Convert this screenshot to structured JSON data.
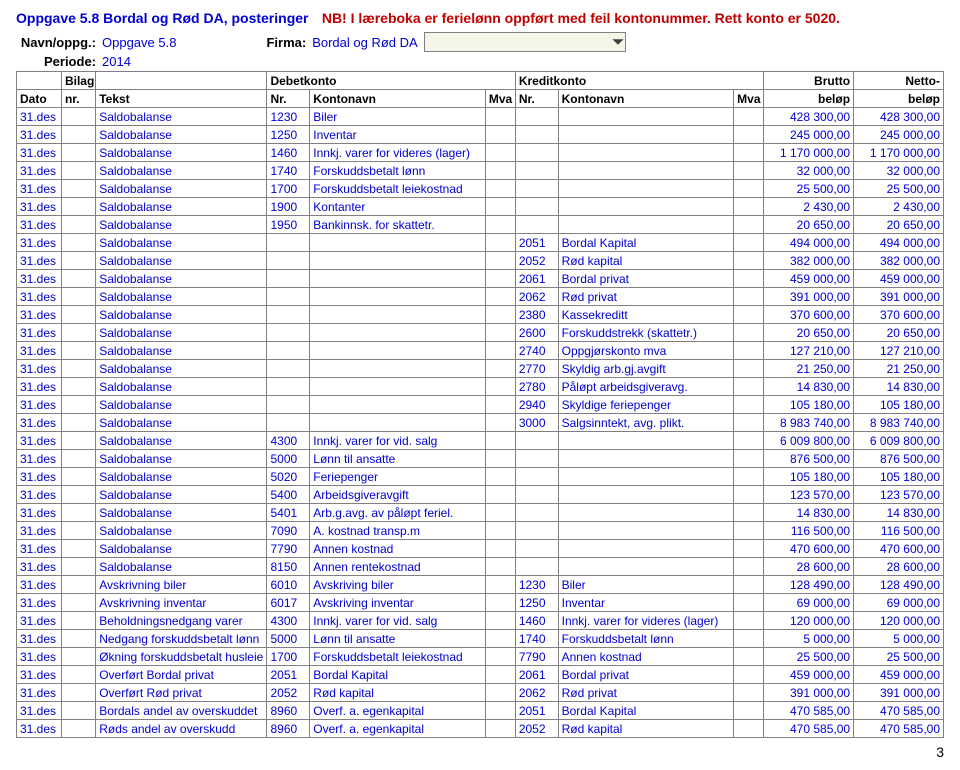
{
  "title": {
    "main": "Oppgave 5.8 Bordal og Rød DA, posteringer",
    "note": "NB! I læreboka er ferielønn oppført med feil kontonummer. Rett konto er 5020."
  },
  "info": {
    "navn_label": "Navn/oppg.:",
    "navn_value": "Oppgave 5.8",
    "firma_label": "Firma:",
    "firma_value": "Bordal og Rød DA",
    "periode_label": "Periode:",
    "periode_value": "2014"
  },
  "headers": {
    "r1": {
      "bilag": "Bilag",
      "debet": "Debetkonto",
      "kredit": "Kreditkonto",
      "brutto": "Brutto",
      "netto": "Netto-"
    },
    "r2": {
      "dato": "Dato",
      "nr1": "nr.",
      "tekst": "Tekst",
      "nr2": "Nr.",
      "konto1": "Kontonavn",
      "mva1": "Mva",
      "nr3": "Nr.",
      "konto2": "Kontonavn",
      "mva2": "Mva",
      "belop1": "beløp",
      "belop2": "beløp"
    }
  },
  "rows": [
    {
      "dato": "31.des",
      "tekst": "Saldobalanse",
      "dnr": "1230",
      "dkonto": "Biler",
      "brutto": "428 300,00",
      "netto": "428 300,00"
    },
    {
      "dato": "31.des",
      "tekst": "Saldobalanse",
      "dnr": "1250",
      "dkonto": "Inventar",
      "brutto": "245 000,00",
      "netto": "245 000,00"
    },
    {
      "dato": "31.des",
      "tekst": "Saldobalanse",
      "dnr": "1460",
      "dkonto": "Innkj. varer for videres (lager)",
      "brutto": "1 170 000,00",
      "netto": "1 170 000,00"
    },
    {
      "dato": "31.des",
      "tekst": "Saldobalanse",
      "dnr": "1740",
      "dkonto": "Forskuddsbetalt lønn",
      "brutto": "32 000,00",
      "netto": "32 000,00"
    },
    {
      "dato": "31.des",
      "tekst": "Saldobalanse",
      "dnr": "1700",
      "dkonto": "Forskuddsbetalt leiekostnad",
      "brutto": "25 500,00",
      "netto": "25 500,00"
    },
    {
      "dato": "31.des",
      "tekst": "Saldobalanse",
      "dnr": "1900",
      "dkonto": "Kontanter",
      "brutto": "2 430,00",
      "netto": "2 430,00"
    },
    {
      "dato": "31.des",
      "tekst": "Saldobalanse",
      "dnr": "1950",
      "dkonto": "Bankinnsk. for skattetr.",
      "brutto": "20 650,00",
      "netto": "20 650,00"
    },
    {
      "dato": "31.des",
      "tekst": "Saldobalanse",
      "knr": "2051",
      "kkonto": "Bordal Kapital",
      "brutto": "494 000,00",
      "netto": "494 000,00"
    },
    {
      "dato": "31.des",
      "tekst": "Saldobalanse",
      "knr": "2052",
      "kkonto": "Rød kapital",
      "brutto": "382 000,00",
      "netto": "382 000,00"
    },
    {
      "dato": "31.des",
      "tekst": "Saldobalanse",
      "knr": "2061",
      "kkonto": "Bordal privat",
      "brutto": "459 000,00",
      "netto": "459 000,00"
    },
    {
      "dato": "31.des",
      "tekst": "Saldobalanse",
      "knr": "2062",
      "kkonto": "Rød privat",
      "brutto": "391 000,00",
      "netto": "391 000,00"
    },
    {
      "dato": "31.des",
      "tekst": "Saldobalanse",
      "knr": "2380",
      "kkonto": "Kassekreditt",
      "brutto": "370 600,00",
      "netto": "370 600,00"
    },
    {
      "dato": "31.des",
      "tekst": "Saldobalanse",
      "knr": "2600",
      "kkonto": "Forskuddstrekk (skattetr.)",
      "brutto": "20 650,00",
      "netto": "20 650,00"
    },
    {
      "dato": "31.des",
      "tekst": "Saldobalanse",
      "knr": "2740",
      "kkonto": "Oppgjørskonto mva",
      "brutto": "127 210,00",
      "netto": "127 210,00"
    },
    {
      "dato": "31.des",
      "tekst": "Saldobalanse",
      "knr": "2770",
      "kkonto": "Skyldig arb.gj.avgift",
      "brutto": "21 250,00",
      "netto": "21 250,00"
    },
    {
      "dato": "31.des",
      "tekst": "Saldobalanse",
      "knr": "2780",
      "kkonto": "Påløpt arbeidsgiveravg.",
      "brutto": "14 830,00",
      "netto": "14 830,00"
    },
    {
      "dato": "31.des",
      "tekst": "Saldobalanse",
      "knr": "2940",
      "kkonto": "Skyldige feriepenger",
      "brutto": "105 180,00",
      "netto": "105 180,00"
    },
    {
      "dato": "31.des",
      "tekst": "Saldobalanse",
      "knr": "3000",
      "kkonto": "Salgsinntekt, avg. plikt.",
      "brutto": "8 983 740,00",
      "netto": "8 983 740,00"
    },
    {
      "dato": "31.des",
      "tekst": "Saldobalanse",
      "dnr": "4300",
      "dkonto": "Innkj. varer for vid. salg",
      "brutto": "6 009 800,00",
      "netto": "6 009 800,00"
    },
    {
      "dato": "31.des",
      "tekst": "Saldobalanse",
      "dnr": "5000",
      "dkonto": "Lønn til ansatte",
      "brutto": "876 500,00",
      "netto": "876 500,00"
    },
    {
      "dato": "31.des",
      "tekst": "Saldobalanse",
      "dnr": "5020",
      "dkonto": "Feriepenger",
      "brutto": "105 180,00",
      "netto": "105 180,00"
    },
    {
      "dato": "31.des",
      "tekst": "Saldobalanse",
      "dnr": "5400",
      "dkonto": "Arbeidsgiveravgift",
      "brutto": "123 570,00",
      "netto": "123 570,00"
    },
    {
      "dato": "31.des",
      "tekst": "Saldobalanse",
      "dnr": "5401",
      "dkonto": "Arb.g.avg. av påløpt feriel.",
      "brutto": "14 830,00",
      "netto": "14 830,00"
    },
    {
      "dato": "31.des",
      "tekst": "Saldobalanse",
      "dnr": "7090",
      "dkonto": "A. kostnad transp.m",
      "brutto": "116 500,00",
      "netto": "116 500,00"
    },
    {
      "dato": "31.des",
      "tekst": "Saldobalanse",
      "dnr": "7790",
      "dkonto": "Annen kostnad",
      "brutto": "470 600,00",
      "netto": "470 600,00"
    },
    {
      "dato": "31.des",
      "tekst": "Saldobalanse",
      "dnr": "8150",
      "dkonto": "Annen rentekostnad",
      "brutto": "28 600,00",
      "netto": "28 600,00"
    },
    {
      "dato": "31.des",
      "tekst": "Avskrivning biler",
      "dnr": "6010",
      "dkonto": "Avskriving biler",
      "knr": "1230",
      "kkonto": "Biler",
      "brutto": "128 490,00",
      "netto": "128 490,00"
    },
    {
      "dato": "31.des",
      "tekst": "Avskrivning inventar",
      "dnr": "6017",
      "dkonto": "Avskriving inventar",
      "knr": "1250",
      "kkonto": "Inventar",
      "brutto": "69 000,00",
      "netto": "69 000,00"
    },
    {
      "dato": "31.des",
      "tekst": "Beholdningsnedgang varer",
      "dnr": "4300",
      "dkonto": "Innkj. varer for vid. salg",
      "knr": "1460",
      "kkonto": "Innkj. varer for videres (lager)",
      "brutto": "120 000,00",
      "netto": "120 000,00"
    },
    {
      "dato": "31.des",
      "tekst": "Nedgang forskuddsbetalt lønn",
      "dnr": "5000",
      "dkonto": "Lønn til ansatte",
      "knr": "1740",
      "kkonto": "Forskuddsbetalt lønn",
      "brutto": "5 000,00",
      "netto": "5 000,00"
    },
    {
      "dato": "31.des",
      "tekst": "Økning forskuddsbetalt husleie",
      "dnr": "1700",
      "dkonto": "Forskuddsbetalt leiekostnad",
      "knr": "7790",
      "kkonto": "Annen kostnad",
      "brutto": "25 500,00",
      "netto": "25 500,00"
    },
    {
      "dato": "31.des",
      "tekst": "Overført Bordal privat",
      "dnr": "2051",
      "dkonto": "Bordal Kapital",
      "knr": "2061",
      "kkonto": "Bordal privat",
      "brutto": "459 000,00",
      "netto": "459 000,00"
    },
    {
      "dato": "31.des",
      "tekst": "Overført Rød privat",
      "dnr": "2052",
      "dkonto": "Rød kapital",
      "knr": "2062",
      "kkonto": "Rød privat",
      "brutto": "391 000,00",
      "netto": "391 000,00"
    },
    {
      "dato": "31.des",
      "tekst": "Bordals andel av overskuddet",
      "dnr": "8960",
      "dkonto": "Overf. a. egenkapital",
      "knr": "2051",
      "kkonto": "Bordal Kapital",
      "brutto": "470 585,00",
      "netto": "470 585,00"
    },
    {
      "dato": "31.des",
      "tekst": "Røds andel av overskudd",
      "dnr": "8960",
      "dkonto": "Overf. a. egenkapital",
      "knr": "2052",
      "kkonto": "Rød kapital",
      "brutto": "470 585,00",
      "netto": "470 585,00"
    }
  ],
  "page_number": "3"
}
